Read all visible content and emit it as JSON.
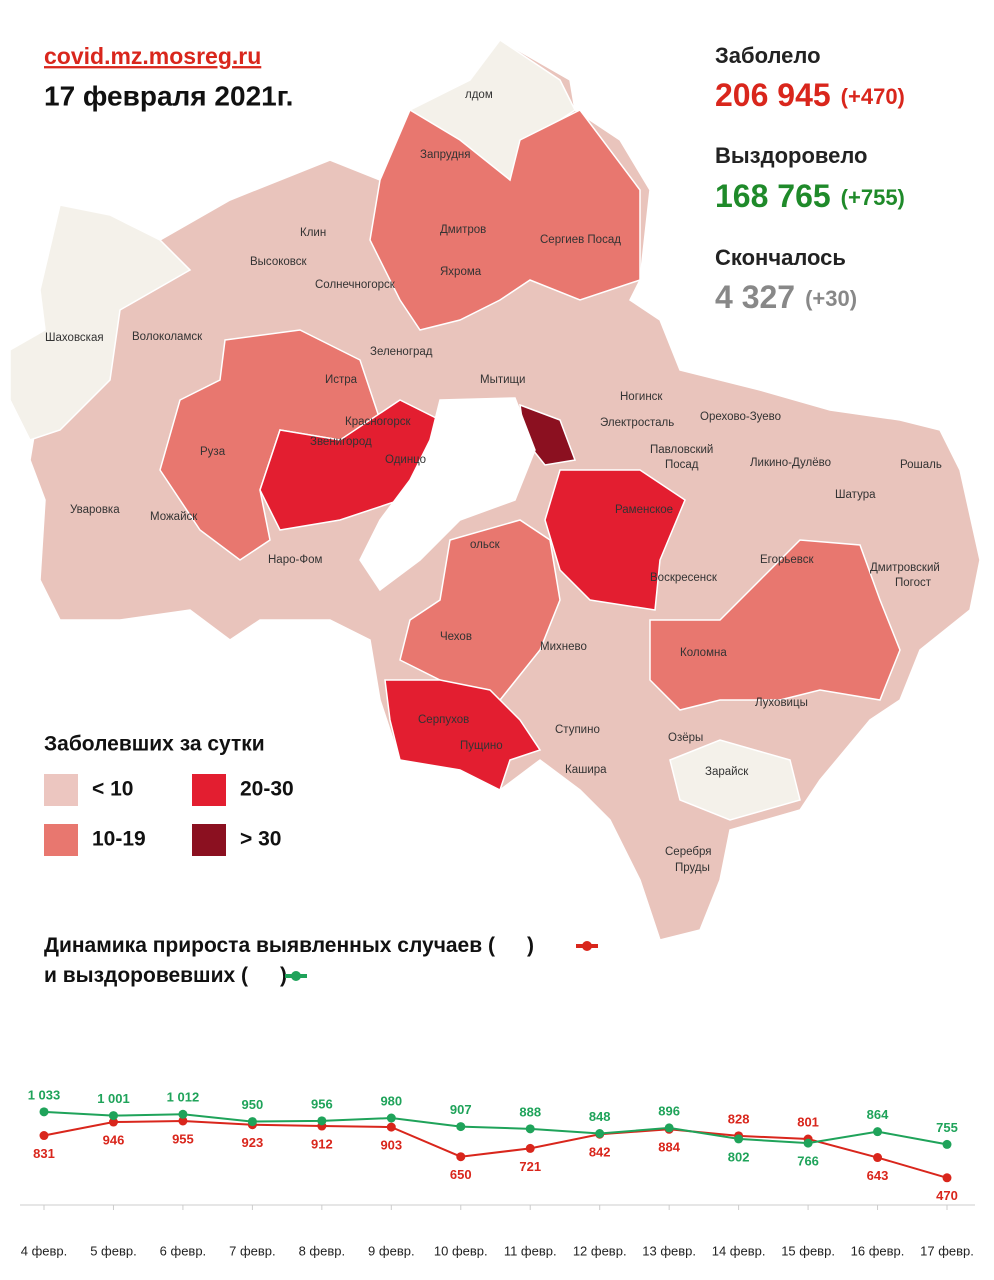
{
  "header": {
    "site": "covid.mz.mosreg.ru",
    "date": "17 февраля 2021г."
  },
  "stats": [
    {
      "label": "Заболело",
      "value": "206 945",
      "delta": "(+470)"
    },
    {
      "label": "Выздоровело",
      "value": "168 765",
      "delta": "(+755)"
    },
    {
      "label": "Скончалось",
      "value": "4 327",
      "delta": "(+30)"
    }
  ],
  "map": {
    "labels": [
      "лдом",
      "Запрудня",
      "Клин",
      "Дмитров",
      "Сергиев Посад",
      "Высоковск",
      "Яхрома",
      "Солнечногорск",
      "Шаховская",
      "Волоколамск",
      "Зеленоград",
      "Истра",
      "Мытищи",
      "Ногинск",
      "Орехово-Зуево",
      "Красногорск",
      "Электросталь",
      "Звенигород",
      "Павловский",
      "Посад",
      "Ликино-Дулёво",
      "Руза",
      "Одинцо",
      "Рошаль",
      "Шатура",
      "Раменское",
      "Уваровка",
      "Можайск",
      "Наро-Фом",
      "ольск",
      "Егорьевск",
      "Дмитровский",
      "Погост",
      "Воскресенск",
      "Чехов",
      "Михнево",
      "Коломна",
      "Серпухов",
      "Пущино",
      "Ступино",
      "Луховицы",
      "Озёры",
      "Кашира",
      "Зарайск",
      "Серебря",
      "Пруды"
    ]
  },
  "legend": {
    "title": "Заболевших за сутки",
    "items": [
      {
        "label": "< 10",
        "color": "#ecc6c0"
      },
      {
        "label": "20-30",
        "color": "#e31e30"
      },
      {
        "label": "10-19",
        "color": "#e8776f"
      },
      {
        "label": "> 30",
        "color": "#8b1020"
      }
    ]
  },
  "chart_data": {
    "type": "line",
    "title": "Динамика прироста выявленных случаев",
    "subtitle": "и выздоровевших",
    "legend_brackets": [
      "(",
      ")"
    ],
    "categories": [
      "4 февр.",
      "5 февр.",
      "6 февр.",
      "7 февр.",
      "8 февр.",
      "9 февр.",
      "10 февр.",
      "11 февр.",
      "12 февр.",
      "13 февр.",
      "14 февр.",
      "15 февр.",
      "16 февр.",
      "17 февр."
    ],
    "ylim": [
      400,
      1100
    ],
    "series": [
      {
        "color": "#d9261c",
        "values": [
          831,
          946,
          955,
          923,
          912,
          903,
          650,
          721,
          842,
          884,
          828,
          801,
          643,
          470
        ],
        "value_labels": [
          "831",
          "946",
          "955",
          "923",
          "912",
          "903",
          "650",
          "721",
          "842",
          "884",
          "828",
          "801",
          "643",
          "470"
        ]
      },
      {
        "color": "#1fa35a",
        "values": [
          1033,
          1001,
          1012,
          950,
          956,
          980,
          907,
          888,
          848,
          896,
          802,
          766,
          864,
          755
        ],
        "value_labels": [
          "1 033",
          "1 001",
          "1 012",
          "950",
          "956",
          "980",
          "907",
          "888",
          "848",
          "896",
          "802",
          "766",
          "864",
          "755"
        ]
      }
    ]
  }
}
